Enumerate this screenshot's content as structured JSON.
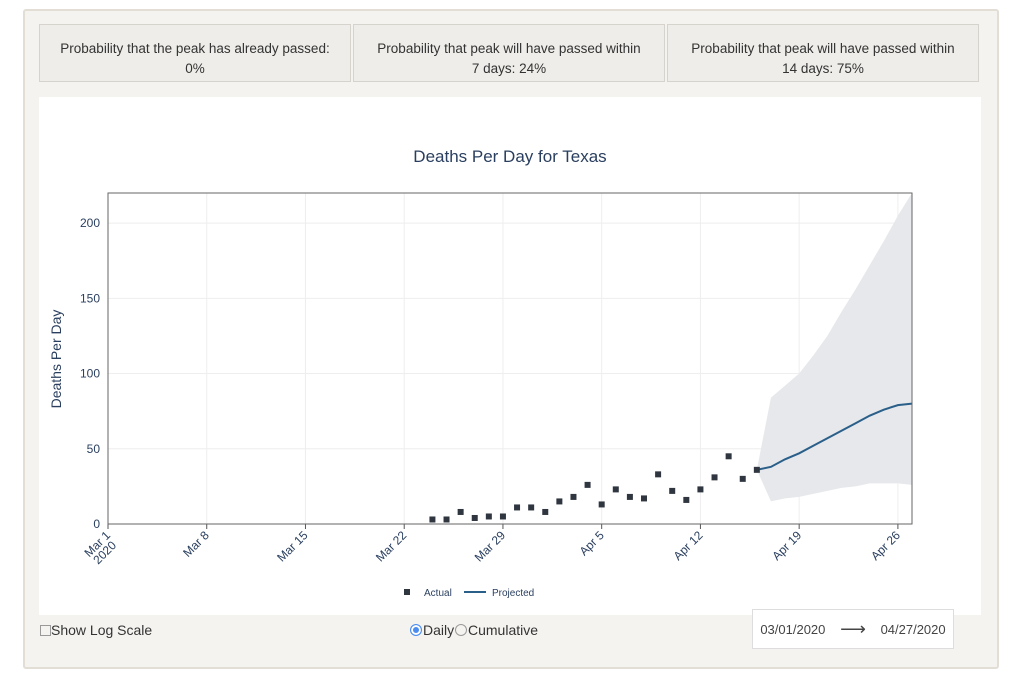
{
  "cards": [
    {
      "line1": "Probability that the peak has already passed:",
      "line2": "0%"
    },
    {
      "line1": "Probability that peak will have passed within",
      "line2": "7 days: 24%"
    },
    {
      "line1": "Probability that peak will have passed within",
      "line2": "14 days: 75%"
    }
  ],
  "controls": {
    "log_scale_label": "Show Log Scale",
    "log_scale_checked": false,
    "daily_label": "Daily",
    "cumulative_label": "Cumulative",
    "selected": "Daily",
    "start_date": "03/01/2020",
    "end_date": "04/27/2020",
    "arrow": "⟶"
  },
  "chart_data": {
    "type": "scatter+line",
    "title": "Deaths Per Day for Texas",
    "ylabel": "Deaths Per Day",
    "xlabel": "",
    "xlim": [
      "2020-03-01",
      "2020-04-27"
    ],
    "ylim": [
      0,
      220
    ],
    "xticks": [
      {
        "date": "2020-03-01",
        "label": "Mar 1",
        "sub": "2020"
      },
      {
        "date": "2020-03-08",
        "label": "Mar 8"
      },
      {
        "date": "2020-03-15",
        "label": "Mar 15"
      },
      {
        "date": "2020-03-22",
        "label": "Mar 22"
      },
      {
        "date": "2020-03-29",
        "label": "Mar 29"
      },
      {
        "date": "2020-04-05",
        "label": "Apr 5"
      },
      {
        "date": "2020-04-12",
        "label": "Apr 12"
      },
      {
        "date": "2020-04-19",
        "label": "Apr 19"
      },
      {
        "date": "2020-04-26",
        "label": "Apr 26"
      }
    ],
    "yticks": [
      0,
      50,
      100,
      150,
      200
    ],
    "grid": true,
    "legend": "bottom",
    "actual": {
      "name": "Actual",
      "color": "#2f3640",
      "x": [
        "2020-03-24",
        "2020-03-25",
        "2020-03-26",
        "2020-03-27",
        "2020-03-28",
        "2020-03-29",
        "2020-03-30",
        "2020-03-31",
        "2020-04-01",
        "2020-04-02",
        "2020-04-03",
        "2020-04-04",
        "2020-04-05",
        "2020-04-06",
        "2020-04-07",
        "2020-04-08",
        "2020-04-09",
        "2020-04-10",
        "2020-04-11",
        "2020-04-12",
        "2020-04-13",
        "2020-04-14",
        "2020-04-15",
        "2020-04-16"
      ],
      "y": [
        3,
        3,
        8,
        4,
        5,
        5,
        11,
        11,
        8,
        15,
        18,
        26,
        13,
        23,
        18,
        17,
        33,
        22,
        16,
        23,
        31,
        45,
        30,
        36
      ]
    },
    "projected": {
      "name": "Projected",
      "color": "#2a5f8a",
      "x": [
        "2020-04-16",
        "2020-04-17",
        "2020-04-18",
        "2020-04-19",
        "2020-04-20",
        "2020-04-21",
        "2020-04-22",
        "2020-04-23",
        "2020-04-24",
        "2020-04-25",
        "2020-04-26",
        "2020-04-27"
      ],
      "y": [
        36,
        38,
        43,
        47,
        52,
        57,
        62,
        67,
        72,
        76,
        79,
        80
      ],
      "upper": [
        36,
        84,
        92,
        100,
        112,
        125,
        141,
        156,
        172,
        188,
        205,
        220
      ],
      "lower": [
        36,
        15,
        17,
        18,
        20,
        22,
        24,
        25,
        27,
        27,
        27,
        26
      ]
    },
    "band_color": "#e6e8eb"
  }
}
